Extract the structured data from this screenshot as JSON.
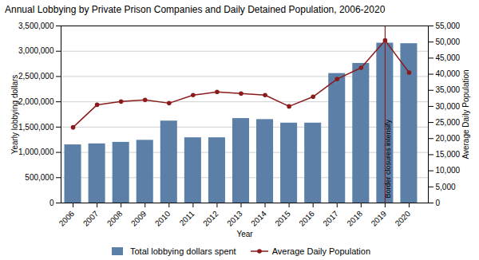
{
  "chart_data": {
    "type": "bar",
    "title": "Annual Lobbying by Private Prison Companies and Daily Detained Population, 2006-2020",
    "xlabel": "Year",
    "ylabel": "Yearly lobbying dollars",
    "y2label": "Average Daily Population",
    "x": [
      2006,
      2007,
      2008,
      2009,
      2010,
      2011,
      2012,
      2013,
      2014,
      2015,
      2016,
      2017,
      2018,
      2019,
      2020
    ],
    "xlim": [
      2005.5,
      2020.8
    ],
    "xticks": [
      2006,
      2007,
      2008,
      2009,
      2010,
      2011,
      2012,
      2013,
      2014,
      2015,
      2016,
      2017,
      2018,
      2019,
      2020
    ],
    "ylim": [
      0,
      3500000
    ],
    "yticks": [
      0,
      {
        "value": 500000,
        "label": "500,000"
      },
      {
        "value": 1000000,
        "label": "1,000,000"
      },
      {
        "value": 1500000,
        "label": "1,500,000"
      },
      {
        "value": 2000000,
        "label": "2,000,000"
      },
      {
        "value": 2500000,
        "label": "2,500,000"
      },
      {
        "value": 3000000,
        "label": "3,000,000"
      },
      {
        "value": 3500000,
        "label": "3,500,000"
      }
    ],
    "y2lim": [
      0,
      55000
    ],
    "y2ticks": [
      0,
      {
        "value": 5000,
        "label": "5,000"
      },
      {
        "value": 10000,
        "label": "10,000"
      },
      {
        "value": 15000,
        "label": "15,000"
      },
      {
        "value": 20000,
        "label": "20,000"
      },
      {
        "value": 25000,
        "label": "25,000"
      },
      {
        "value": 30000,
        "label": "30,000"
      },
      {
        "value": 35000,
        "label": "35,000"
      },
      {
        "value": 40000,
        "label": "40,000"
      },
      {
        "value": 45000,
        "label": "45,000"
      },
      {
        "value": 50000,
        "label": "50,000"
      },
      {
        "value": 55000,
        "label": "55,000"
      }
    ],
    "series": [
      {
        "name": "Total lobbying dollars spent",
        "type": "bar",
        "color": "#5b7fa6",
        "values": [
          1150000,
          1170000,
          1200000,
          1240000,
          1620000,
          1290000,
          1290000,
          1670000,
          1650000,
          1580000,
          1580000,
          2560000,
          2760000,
          3160000,
          3150000
        ]
      },
      {
        "name": "Average Daily Population",
        "type": "line",
        "color": "#8b1a1a",
        "marker": "circle",
        "axis": "y2",
        "values": [
          23500,
          30500,
          31500,
          32000,
          31000,
          33500,
          34500,
          34000,
          33500,
          30000,
          33000,
          38500,
          42000,
          50500,
          40500
        ]
      }
    ],
    "annotations": [
      {
        "x": 2019,
        "text": "Border closures intensify",
        "color": "#8b2020"
      }
    ],
    "grid": true,
    "legend": "bottom"
  }
}
